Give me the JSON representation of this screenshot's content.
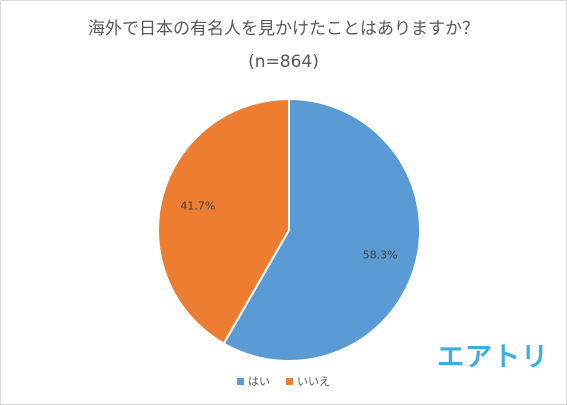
{
  "chart_data": {
    "type": "pie",
    "title": "海外で日本の有名人を見かけたことはありますか？",
    "subtitle": "(n=864)",
    "categories": [
      "はい",
      "いいえ"
    ],
    "values": [
      58.3,
      41.7
    ],
    "labels": [
      "58.3%",
      "41.7%"
    ],
    "colors": [
      "#5b9bd5",
      "#ed7d31"
    ],
    "legend_position": "bottom"
  },
  "logo_text": "エアトリ"
}
